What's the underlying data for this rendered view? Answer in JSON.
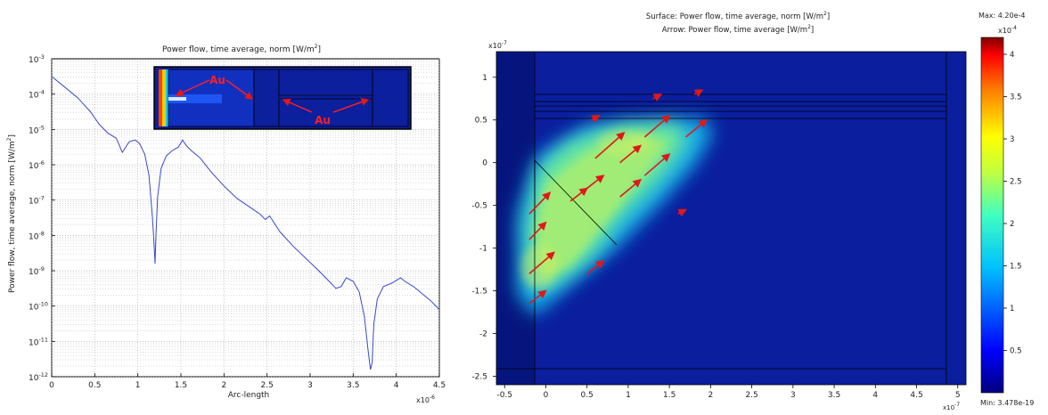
{
  "left_panel": {
    "title": "Power flow, time average, norm [W/m",
    "title_sup": "2",
    "title_end": "]",
    "ylabel": "Power flow, time average, norm [W/m",
    "ylabel_sup": "2",
    "ylabel_end": "]",
    "xlabel": "Arc-length",
    "x_exponent": "x10",
    "x_exponent_power": "-6",
    "inset_label_1": "Au",
    "inset_label_2": "Au"
  },
  "right_panel": {
    "title_line1": "Surface: Power flow, time average, norm [W/m",
    "title_line1_sup": "2",
    "title_line1_end": "]",
    "title_line2": "Arrow: Power flow, time average [W/m",
    "title_line2_sup": "2",
    "title_line2_end": "]",
    "y_exponent": "x10",
    "y_exponent_power": "-7",
    "x_exponent": "x10",
    "x_exponent_power": "-7",
    "colorbar_max": "Max: 4.20e-4",
    "colorbar_exponent": "x10",
    "colorbar_exponent_power": "-4",
    "colorbar_min": "Min: 3.478e-19"
  },
  "colors": {
    "line": "#3a48c8",
    "arrow": "#e01818",
    "field_bg": "#0a1e9e",
    "inset_label": "#ff2020"
  },
  "chart_data": [
    {
      "type": "line",
      "title": "Power flow, time average, norm [W/m^2]",
      "xlabel": "Arc-length",
      "ylabel": "Power flow, time average, norm [W/m^2]",
      "x_scale": "x10^-6",
      "y_scale": "log",
      "xlim": [
        0,
        4.5
      ],
      "ylim_log10": [
        -12,
        -3
      ],
      "grid": true,
      "xticks": [
        "0",
        "0.5",
        "1",
        "1.5",
        "2",
        "2.5",
        "3",
        "3.5",
        "4",
        "4.5"
      ],
      "yticks": [
        "10^-12",
        "10^-11",
        "10^-10",
        "10^-9",
        "10^-8",
        "10^-7",
        "10^-6",
        "10^-5",
        "10^-4",
        "10^-3"
      ],
      "x": [
        0,
        0.05,
        0.15,
        0.3,
        0.45,
        0.55,
        0.65,
        0.75,
        0.82,
        0.9,
        0.97,
        1.02,
        1.08,
        1.13,
        1.17,
        1.19,
        1.2,
        1.21,
        1.23,
        1.27,
        1.33,
        1.4,
        1.47,
        1.52,
        1.56,
        1.62,
        1.72,
        1.85,
        2.0,
        2.15,
        2.3,
        2.42,
        2.48,
        2.53,
        2.65,
        2.8,
        2.95,
        3.1,
        3.22,
        3.3,
        3.36,
        3.42,
        3.5,
        3.57,
        3.63,
        3.67,
        3.7,
        3.72,
        3.74,
        3.78,
        3.85,
        3.95,
        4.05,
        4.1,
        4.2,
        4.3,
        4.4,
        4.5
      ],
      "y_log10": [
        -3.5,
        -3.6,
        -3.8,
        -4.1,
        -4.5,
        -4.85,
        -5.1,
        -5.25,
        -5.65,
        -5.35,
        -5.3,
        -5.4,
        -5.7,
        -6.3,
        -7.5,
        -8.3,
        -8.8,
        -8.0,
        -6.9,
        -6.1,
        -5.75,
        -5.6,
        -5.5,
        -5.3,
        -5.45,
        -5.6,
        -5.8,
        -6.2,
        -6.6,
        -6.95,
        -7.2,
        -7.4,
        -7.55,
        -7.45,
        -7.9,
        -8.3,
        -8.65,
        -9.0,
        -9.3,
        -9.5,
        -9.45,
        -9.2,
        -9.3,
        -9.6,
        -10.3,
        -11.2,
        -11.8,
        -11.6,
        -10.5,
        -9.8,
        -9.45,
        -9.35,
        -9.2,
        -9.3,
        -9.45,
        -9.65,
        -9.85,
        -10.1
      ]
    },
    {
      "type": "heatmap",
      "title": "Surface: Power flow, time average, norm [W/m^2]; Arrow: Power flow, time average [W/m^2]",
      "x_scale": "x10^-7",
      "y_scale": "x10^-7",
      "xlim": [
        -0.6,
        5.1
      ],
      "ylim": [
        -2.6,
        1.3
      ],
      "xticks": [
        "-0.5",
        "0",
        "0.5",
        "1",
        "1.5",
        "2",
        "2.5",
        "3",
        "3.5",
        "4",
        "4.5",
        "5"
      ],
      "yticks": [
        "1",
        "0.5",
        "0",
        "-0.5",
        "-1",
        "-1.5",
        "-2",
        "-2.5"
      ],
      "colorbar": {
        "min": 3.478e-19,
        "max": 0.00042,
        "ticks": [
          "0.5",
          "1",
          "1.5",
          "2",
          "2.5",
          "3",
          "3.5",
          "4"
        ]
      },
      "arrows": [
        {
          "x": -0.2,
          "y": -0.6,
          "dx": 0.25,
          "dy": 0.25
        },
        {
          "x": -0.2,
          "y": -0.9,
          "dx": 0.2,
          "dy": 0.2
        },
        {
          "x": -0.2,
          "y": -1.3,
          "dx": 0.3,
          "dy": 0.25
        },
        {
          "x": -0.2,
          "y": -1.65,
          "dx": 0.2,
          "dy": 0.15
        },
        {
          "x": 0.3,
          "y": -0.45,
          "dx": 0.2,
          "dy": 0.15
        },
        {
          "x": 0.5,
          "y": -0.3,
          "dx": 0.2,
          "dy": 0.15
        },
        {
          "x": 0.5,
          "y": -1.3,
          "dx": 0.2,
          "dy": 0.15
        },
        {
          "x": 0.6,
          "y": 0.05,
          "dx": 0.35,
          "dy": 0.3
        },
        {
          "x": 0.55,
          "y": 0.5,
          "dx": 0.1,
          "dy": 0.05
        },
        {
          "x": 0.9,
          "y": 0.0,
          "dx": 0.25,
          "dy": 0.2
        },
        {
          "x": 0.9,
          "y": -0.4,
          "dx": 0.25,
          "dy": 0.2
        },
        {
          "x": 1.2,
          "y": 0.3,
          "dx": 0.3,
          "dy": 0.25
        },
        {
          "x": 1.2,
          "y": -0.15,
          "dx": 0.3,
          "dy": 0.25
        },
        {
          "x": 1.3,
          "y": 0.75,
          "dx": 0.1,
          "dy": 0.05
        },
        {
          "x": 1.7,
          "y": 0.3,
          "dx": 0.25,
          "dy": 0.2
        },
        {
          "x": 1.8,
          "y": 0.8,
          "dx": 0.1,
          "dy": 0.05
        },
        {
          "x": 1.6,
          "y": -0.6,
          "dx": 0.1,
          "dy": 0.05
        }
      ]
    }
  ]
}
